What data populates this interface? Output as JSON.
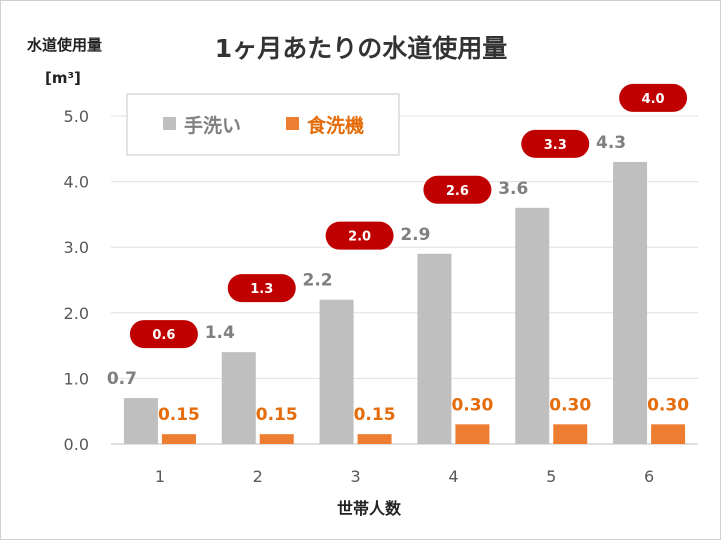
{
  "chart_data": {
    "type": "bar",
    "title": "1ヶ月あたりの水道使用量",
    "ylabel": "水道使用量",
    "yunit": "[m³]",
    "xlabel": "世帯人数",
    "ylim": [
      0,
      5
    ],
    "yticks": [
      "0.0",
      "1.0",
      "2.0",
      "3.0",
      "4.0",
      "5.0"
    ],
    "categories": [
      "1",
      "2",
      "3",
      "4",
      "5",
      "6"
    ],
    "legend_position": "top-left",
    "series": [
      {
        "name": "手洗い",
        "color": "#bfbfbf",
        "values": [
          0.7,
          1.4,
          2.2,
          2.9,
          3.6,
          4.3
        ],
        "labels": [
          "0.7",
          "1.4",
          "2.2",
          "2.9",
          "3.6",
          "4.3"
        ]
      },
      {
        "name": "食洗機",
        "color": "#ed7d31",
        "values": [
          0.15,
          0.15,
          0.15,
          0.3,
          0.3,
          0.3
        ],
        "labels": [
          "0.15",
          "0.15",
          "0.15",
          "0.30",
          "0.30",
          "0.30"
        ]
      }
    ],
    "difference_labels": {
      "color": "#c00000",
      "values": [
        0.6,
        1.3,
        2.0,
        2.6,
        3.3,
        4.0
      ],
      "labels": [
        "0.6",
        "1.3",
        "2.0",
        "2.6",
        "3.3",
        "4.0"
      ]
    }
  }
}
